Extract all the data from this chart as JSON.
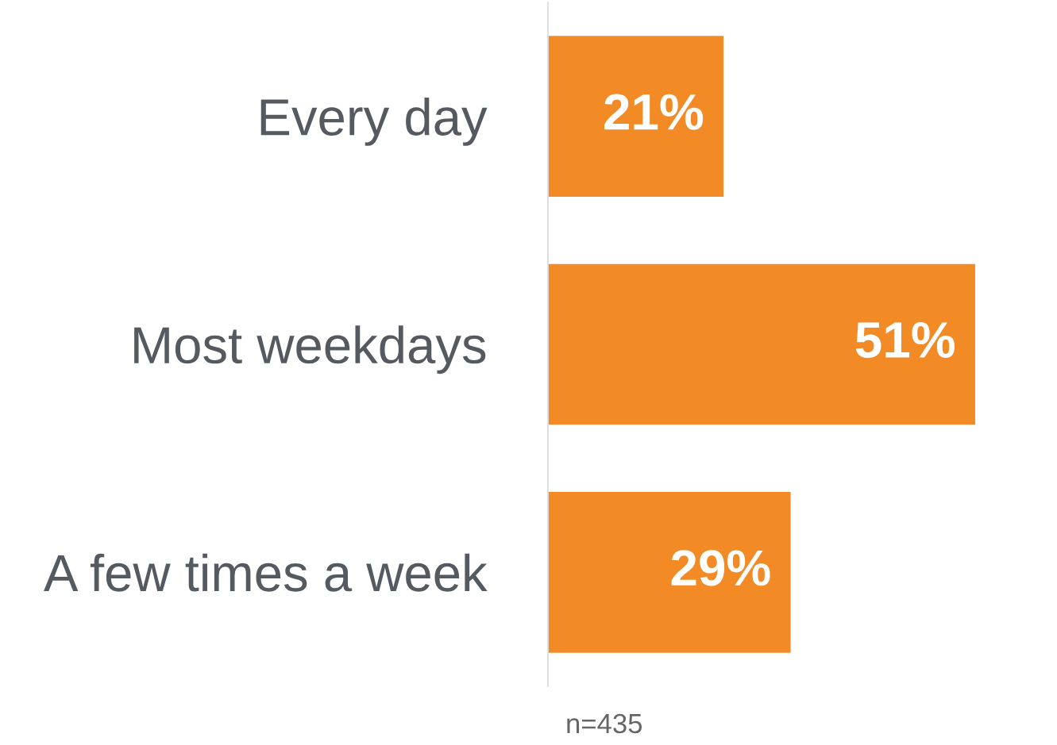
{
  "chart_data": {
    "type": "bar",
    "orientation": "horizontal",
    "categories": [
      "Every day",
      "Most weekdays",
      "A few times a week"
    ],
    "values": [
      21,
      51,
      29
    ],
    "value_labels": [
      "21%",
      "51%",
      "29%"
    ],
    "color": "#f28a26",
    "grid": false,
    "annotations": [
      "n=435"
    ]
  }
}
